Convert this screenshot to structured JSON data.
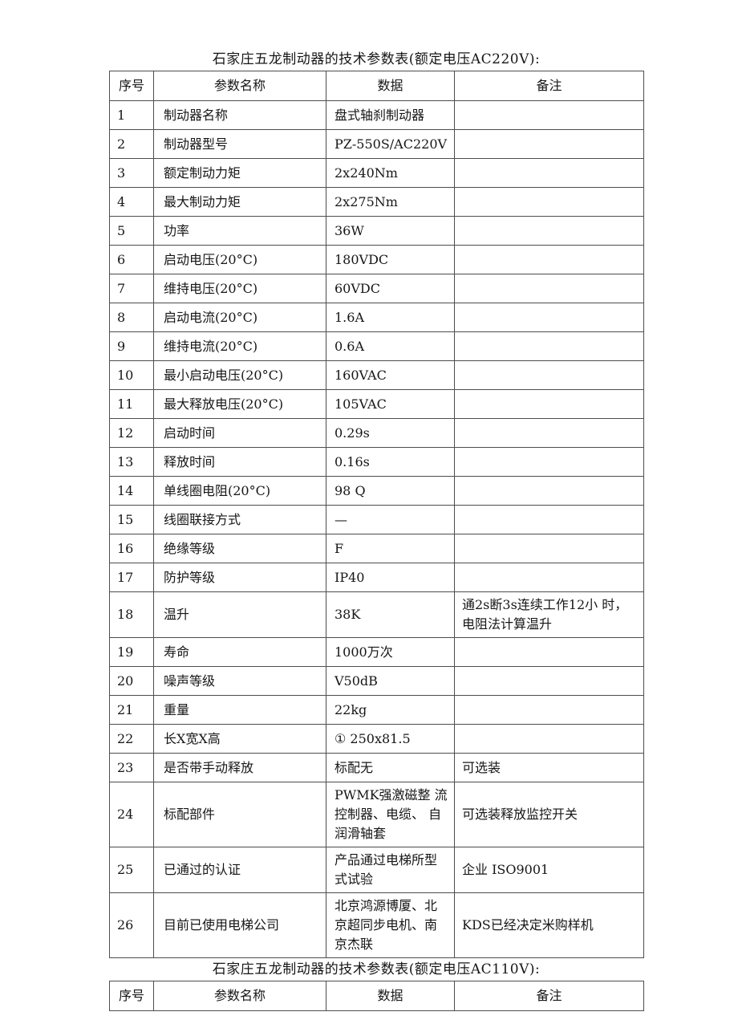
{
  "table1": {
    "title": "石家庄五龙制动器的技术参数表(额定电压AC220V):",
    "headers": [
      "序号",
      "参数名称",
      "数据",
      "备注"
    ],
    "rows": [
      {
        "no": "1",
        "name": "制动器名称",
        "data": "盘式轴刹制动器",
        "remark": ""
      },
      {
        "no": "2",
        "name": "制动器型号",
        "data": "PZ-550S/AC220V",
        "remark": ""
      },
      {
        "no": "3",
        "name": "额定制动力矩",
        "data": "2x240Nm",
        "remark": ""
      },
      {
        "no": "4",
        "name": "最大制动力矩",
        "data": "2x275Nm",
        "remark": ""
      },
      {
        "no": "5",
        "name": "功率",
        "data": "36W",
        "remark": ""
      },
      {
        "no": "6",
        "name": "启动电压(20°C)",
        "data": "180VDC",
        "remark": ""
      },
      {
        "no": "7",
        "name": "维持电压(20°C)",
        "data": "60VDC",
        "remark": ""
      },
      {
        "no": "8",
        "name": "启动电流(20°C)",
        "data": "1.6A",
        "remark": ""
      },
      {
        "no": "9",
        "name": "维持电流(20°C)",
        "data": "0.6A",
        "remark": ""
      },
      {
        "no": "10",
        "name": "最小启动电压(20°C)",
        "data": "160VAC",
        "remark": ""
      },
      {
        "no": "11",
        "name": "最大释放电压(20°C)",
        "data": "105VAC",
        "remark": ""
      },
      {
        "no": "12",
        "name": "启动时间",
        "data": "0.29s",
        "remark": ""
      },
      {
        "no": "13",
        "name": "释放时间",
        "data": "0.16s",
        "remark": ""
      },
      {
        "no": "14",
        "name": "单线圈电阻(20°C)",
        "data": "98 Q",
        "remark": ""
      },
      {
        "no": "15",
        "name": "线圈联接方式",
        "data": "—",
        "remark": ""
      },
      {
        "no": "16",
        "name": "绝缘等级",
        "data": "F",
        "remark": ""
      },
      {
        "no": "17",
        "name": "防护等级",
        "data": "IP40",
        "remark": ""
      },
      {
        "no": "18",
        "name": "温升",
        "data": "38K",
        "remark": "通2s断3s连续工作12小 时，电阻法计算温升"
      },
      {
        "no": "19",
        "name": "寿命",
        "data": "1000万次",
        "remark": ""
      },
      {
        "no": "20",
        "name": "噪声等级",
        "data": "V50dB",
        "remark": ""
      },
      {
        "no": "21",
        "name": "重量",
        "data": "22kg",
        "remark": ""
      },
      {
        "no": "22",
        "name": "长X宽X高",
        "data": "① 250x81.5",
        "remark": ""
      },
      {
        "no": "23",
        "name": "是否带手动释放",
        "data": "标配无",
        "remark": "可选装"
      },
      {
        "no": "24",
        "name": "标配部件",
        "data": "PWMK强激磁整 流控制器、电缆、 自润滑轴套",
        "remark": "可选装释放监控开关"
      },
      {
        "no": "25",
        "name": "已通过的认证",
        "data": "产品通过电梯所型式试验",
        "remark": "企业 ISO9001"
      },
      {
        "no": "26",
        "name": "目前已使用电梯公司",
        "data": "北京鸿源博厦、北京超同步电机、南京杰联",
        "remark": "KDS已经决定米购样机"
      }
    ]
  },
  "table2": {
    "title": "石家庄五龙制动器的技术参数表(额定电压AC110V):",
    "headers": [
      "序号",
      "参数名称",
      "数据",
      "备注"
    ]
  }
}
